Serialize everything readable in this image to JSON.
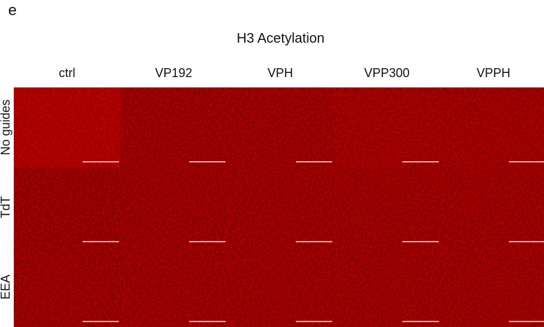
{
  "panel_label": "e",
  "title": "H3 Acetylation",
  "columns": [
    "ctrl",
    "VP192",
    "VPH",
    "VPP300",
    "VPPH"
  ],
  "rows": [
    "No guides",
    "TdT",
    "EEA"
  ]
}
